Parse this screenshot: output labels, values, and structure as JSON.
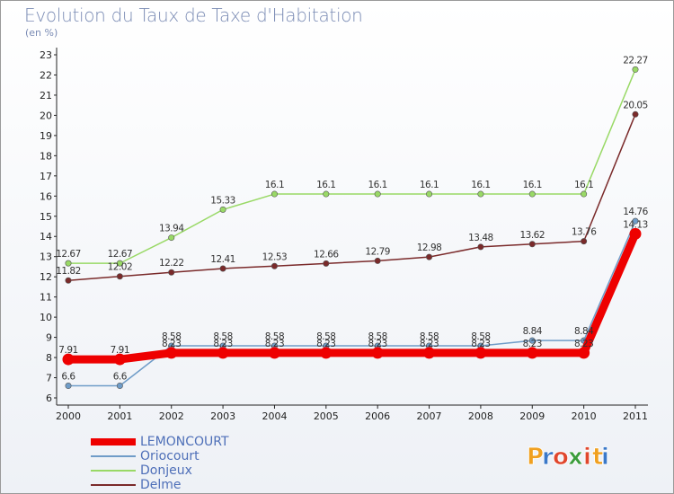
{
  "header": {
    "title": "Evolution du Taux de Taxe d'Habitation",
    "unit": "(en %)"
  },
  "logo": {
    "text": "Proxiti",
    "letters": [
      "P",
      "r",
      "o",
      "x",
      "i",
      "t",
      "i"
    ],
    "colors": [
      "#f0a020",
      "#3a78c8",
      "#e0462c",
      "#3a9c3a",
      "#e0462c",
      "#f0a020",
      "#3a78c8"
    ]
  },
  "chart_data": {
    "type": "line",
    "x": [
      "2000",
      "2001",
      "2002",
      "2003",
      "2004",
      "2005",
      "2006",
      "2007",
      "2008",
      "2009",
      "2010",
      "2011"
    ],
    "ylim": [
      6,
      23
    ],
    "yticks": [
      "6",
      "7",
      "8",
      "9",
      "10",
      "11",
      "12",
      "13",
      "14",
      "15",
      "16",
      "17",
      "18",
      "19",
      "20",
      "21",
      "22",
      "23"
    ],
    "grid": false,
    "legend_position": "bottom-left",
    "series": [
      {
        "name": "LEMONCOURT",
        "color": "#ee0000",
        "width": 9,
        "values": [
          7.91,
          7.91,
          8.23,
          8.23,
          8.23,
          8.23,
          8.23,
          8.23,
          8.23,
          8.23,
          8.23,
          14.13
        ],
        "labels": [
          "7.91",
          "7.91",
          "8.23",
          "8.23",
          "8.23",
          "8.23",
          "8.23",
          "8.23",
          "8.23",
          "8.23",
          "8.23",
          "14.13"
        ],
        "label_pos": "above"
      },
      {
        "name": "Oriocourt",
        "color": "#6f9cc8",
        "width": 1.5,
        "values": [
          6.6,
          6.6,
          8.58,
          8.58,
          8.58,
          8.58,
          8.58,
          8.58,
          8.58,
          8.84,
          8.84,
          14.76
        ],
        "labels": [
          "6.6",
          "6.6",
          "8.58",
          "8.58",
          "8.58",
          "8.58",
          "8.58",
          "8.58",
          "8.58",
          "8.84",
          "8.84",
          "14.76"
        ],
        "label_pos": "above"
      },
      {
        "name": "Donjeux",
        "color": "#99d966",
        "width": 1.5,
        "values": [
          12.67,
          12.67,
          13.94,
          15.33,
          16.1,
          16.1,
          16.1,
          16.1,
          16.1,
          16.1,
          16.1,
          22.27
        ],
        "labels": [
          "12.67",
          "12.67",
          "13.94",
          "15.33",
          "16.1",
          "16.1",
          "16.1",
          "16.1",
          "16.1",
          "16.1",
          "16.1",
          "22.27"
        ],
        "label_pos": "above"
      },
      {
        "name": "Delme",
        "color": "#7a2a2a",
        "width": 1.5,
        "values": [
          11.82,
          12.02,
          12.22,
          12.41,
          12.53,
          12.66,
          12.79,
          12.98,
          13.48,
          13.62,
          13.76,
          20.05
        ],
        "labels": [
          "11.82",
          "12.02",
          "12.22",
          "12.41",
          "12.53",
          "12.66",
          "12.79",
          "12.98",
          "13.48",
          "13.62",
          "13.76",
          "20.05"
        ],
        "label_pos": "above"
      }
    ]
  }
}
